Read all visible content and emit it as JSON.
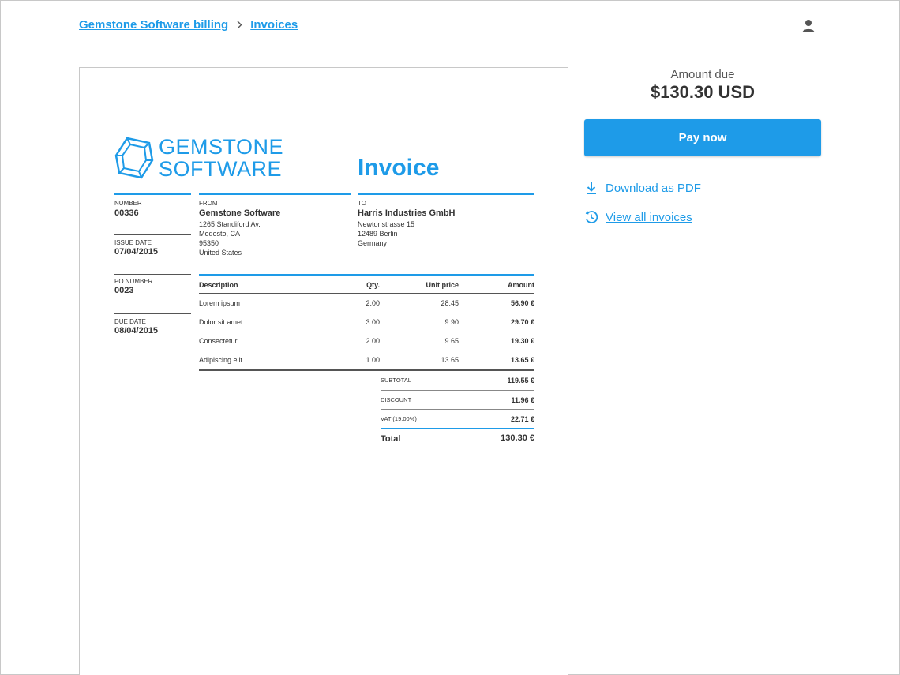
{
  "breadcrumb": {
    "parent": "Gemstone Software billing",
    "current": "Invoices"
  },
  "icons": {
    "user": "user-icon",
    "separator": "chevron-right-icon",
    "download": "download-icon",
    "history": "history-icon"
  },
  "colors": {
    "accent": "#1e9be8"
  },
  "invoice": {
    "logo_line1": "GEMSTONE",
    "logo_line2": "SOFTWARE",
    "title": "Invoice",
    "number_label": "NUMBER",
    "number": "00336",
    "issue_label": "ISSUE DATE",
    "issue_date": "07/04/2015",
    "po_label": "PO NUMBER",
    "po_number": "0023",
    "due_label": "DUE DATE",
    "due_date": "08/04/2015",
    "from_label": "FROM",
    "from_name": "Gemstone Software",
    "from_lines": [
      "1265 Standiford Av.",
      "Modesto, CA",
      "95350",
      "United States"
    ],
    "to_label": "TO",
    "to_name": "Harris Industries GmbH",
    "to_lines": [
      "Newtonstrasse 15",
      "12489 Berlin",
      "Germany"
    ],
    "columns": [
      "Description",
      "Qty.",
      "Unit price",
      "Amount"
    ],
    "items": [
      [
        "Lorem ipsum",
        "2.00",
        "28.45",
        "56.90 €"
      ],
      [
        "Dolor sit amet",
        "3.00",
        "9.90",
        "29.70 €"
      ],
      [
        "Consectetur",
        "2.00",
        "9.65",
        "19.30 €"
      ],
      [
        "Adipiscing elit",
        "1.00",
        "13.65",
        "13.65 €"
      ]
    ],
    "subtotal_label": "SUBTOTAL",
    "subtotal": "119.55 €",
    "discount_label": "DISCOUNT",
    "discount": "11.96 €",
    "vat_label": "VAT (19.00%)",
    "vat": "22.71 €",
    "total_label": "Total",
    "total": "130.30 €"
  },
  "side": {
    "amount_label": "Amount due",
    "amount": "$130.30 USD",
    "pay_label": "Pay now",
    "download_label": "Download as PDF",
    "all_invoices_label": "View all invoices"
  }
}
